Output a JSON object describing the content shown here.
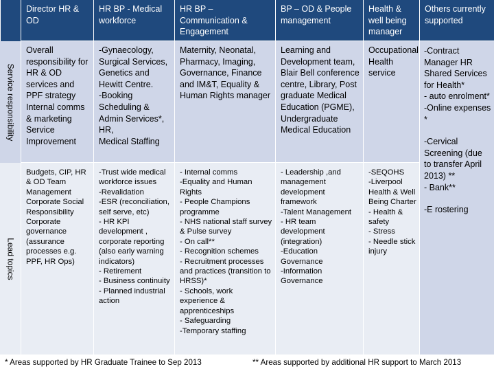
{
  "headers": [
    "Director HR & OD",
    "HR BP - Medical workforce",
    "HR BP – Communication & Engagement",
    "BP – OD & People management",
    "Health & well being manager",
    "Others currently supported"
  ],
  "row_labels": {
    "service": "Service responsibility",
    "lead": "Lead topics"
  },
  "service": [
    "Overall responsibility for HR & OD services and PPF strategy Internal comms & marketing Service Improvement",
    "-Gynaecology, Surgical Services, Genetics and Hewitt Centre.\n-Booking Scheduling & Admin Services*, HR,\nMedical Staffing",
    "Maternity, Neonatal, Pharmacy, Imaging, Governance, Finance and IM&T, Equality & Human Rights manager",
    "Learning and Development team, Blair Bell conference centre, Library, Post graduate Medical Education (PGME), Undergraduate Medical Education",
    "Occupational Health service"
  ],
  "lead": [
    "Budgets, CIP, HR & OD Team Management Corporate Social Responsibility Corporate governance (assurance processes e.g. PPF, HR Ops)",
    "-Trust wide medical workforce issues\n-Revalidation\n-ESR (reconciliation, self serve, etc)\n- HR KPI development , corporate reporting (also early warning indicators)\n- Retirement\n- Business continuity\n- Planned industrial action",
    "- Internal comms\n-Equality and Human Rights\n- People Champions programme\n- NHS national staff survey & Pulse survey\n- On call**\n- Recognition schemes\n- Recruitment processes and practices (transition to HRSS)*\n- Schools, work experience & apprenticeships\n- Safeguarding\n-Temporary staffing",
    "- Leadership ,and management development framework\n-Talent Management\n- HR team development (integration)\n-Education Governance\n-Information Governance",
    "-SEQOHS\n-Liverpool Health & Well Being Charter\n- Health & safety\n- Stress\n- Needle stick injury"
  ],
  "others": {
    "top": "-Contract Manager HR Shared Services for Health*\n- auto enrolment*\n-Online expenses *",
    "middle": "-Cervical Screening (due to transfer April 2013) **\n- Bank**",
    "bottom": "-E rostering"
  },
  "footer": {
    "left": "* Areas supported by HR Graduate Trainee to Sep 2013",
    "right": "** Areas supported by additional HR support to March 2013"
  }
}
